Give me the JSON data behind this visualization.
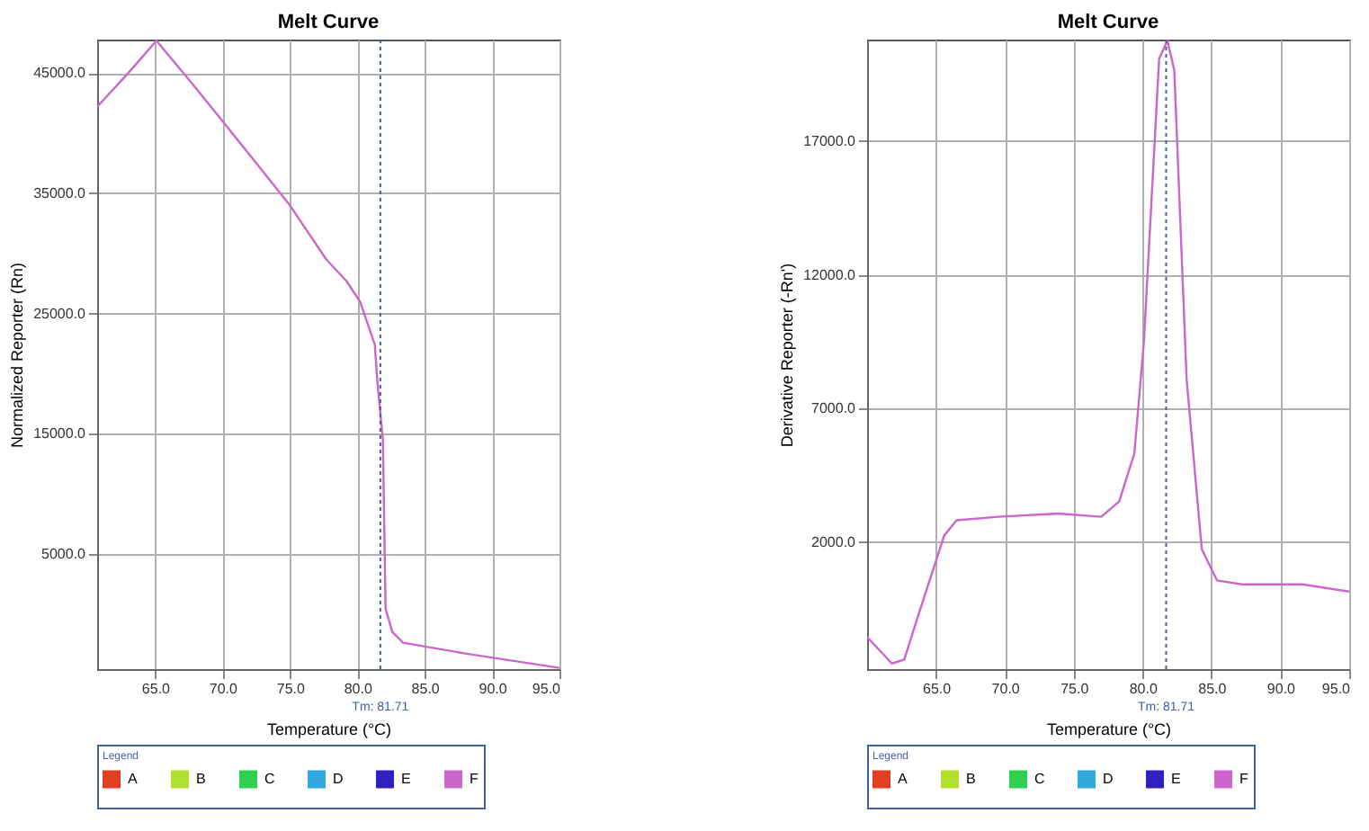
{
  "chart_data": [
    {
      "type": "line",
      "title": "Melt Curve",
      "xlabel": "Temperature (°C)",
      "ylabel": "Normalized Reporter (Rn)",
      "legend_title": "Legend",
      "legend": "bottom",
      "grid": true,
      "line_style": "solid",
      "xlim": [
        60.7,
        95
      ],
      "ylim": [
        -4600,
        47800
      ],
      "xticks": [
        {
          "value": 65,
          "label": "65.0"
        },
        {
          "value": 70,
          "label": "70.0"
        },
        {
          "value": 75,
          "label": "75.0"
        },
        {
          "value": 80,
          "label": "80.0"
        },
        {
          "value": 85,
          "label": "85.0"
        },
        {
          "value": 90,
          "label": "90.0"
        },
        {
          "value": 95,
          "label": "95.0"
        }
      ],
      "yticks": [
        {
          "value": 5000,
          "label": "5000.0"
        },
        {
          "value": 15000,
          "label": "15000.0"
        },
        {
          "value": 25000,
          "label": "25000.0"
        },
        {
          "value": 35000,
          "label": "35000.0"
        },
        {
          "value": 45000,
          "label": "45000.0"
        }
      ],
      "ref_lines": [
        {
          "axis": "x",
          "value": 81.71,
          "label": "Tm: 81.71",
          "color": "#4060a0",
          "line_style": "dotted"
        }
      ],
      "x": [
        60.7,
        63,
        65.1,
        68,
        72.3,
        75,
        77.7,
        79.2,
        80.2,
        81.3,
        81.5,
        81.9,
        82.1,
        82.6,
        83.4,
        88,
        95
      ],
      "series": [
        {
          "name": "A",
          "color": "#e04020",
          "values": [
            null,
            null,
            null,
            null,
            null,
            null,
            null,
            null,
            null,
            null,
            null,
            null,
            null,
            null,
            null,
            null,
            null
          ]
        },
        {
          "name": "B",
          "color": "#b0e030",
          "values": [
            null,
            null,
            null,
            null,
            null,
            null,
            null,
            null,
            null,
            null,
            null,
            null,
            null,
            null,
            null,
            null,
            null
          ]
        },
        {
          "name": "C",
          "color": "#30d050",
          "values": [
            null,
            null,
            null,
            null,
            null,
            null,
            null,
            null,
            null,
            null,
            null,
            null,
            null,
            null,
            null,
            null,
            null
          ]
        },
        {
          "name": "D",
          "color": "#30a8e0",
          "values": [
            null,
            null,
            null,
            null,
            null,
            null,
            null,
            null,
            null,
            null,
            null,
            null,
            null,
            null,
            null,
            null,
            null
          ]
        },
        {
          "name": "E",
          "color": "#3020c0",
          "values": [
            null,
            null,
            null,
            null,
            null,
            null,
            null,
            null,
            null,
            null,
            null,
            null,
            null,
            null,
            null,
            null,
            null
          ]
        },
        {
          "name": "F",
          "color": "#cc66cc",
          "values": [
            42200,
            45000,
            47700,
            43800,
            37800,
            34000,
            29500,
            27700,
            26000,
            22400,
            19200,
            14500,
            400,
            -1500,
            -2400,
            -3300,
            -4500
          ]
        }
      ]
    },
    {
      "type": "line",
      "title": "Melt Curve",
      "xlabel": "Temperature (°C)",
      "ylabel": "Derivative Reporter (-Rn')",
      "legend_title": "Legend",
      "legend": "bottom",
      "grid": true,
      "line_style": "solid",
      "xlim": [
        60,
        95
      ],
      "ylim": [
        -2750,
        20800
      ],
      "xticks": [
        {
          "value": 65,
          "label": "65.0"
        },
        {
          "value": 70,
          "label": "70.0"
        },
        {
          "value": 75,
          "label": "75.0"
        },
        {
          "value": 80,
          "label": "80.0"
        },
        {
          "value": 85,
          "label": "85.0"
        },
        {
          "value": 90,
          "label": "90.0"
        },
        {
          "value": 95,
          "label": "95.0"
        }
      ],
      "yticks": [
        {
          "value": 2000,
          "label": "2000.0"
        },
        {
          "value": 7000,
          "label": "7000.0"
        },
        {
          "value": 12000,
          "label": "12000.0"
        },
        {
          "value": 17000,
          "label": "17000.0"
        }
      ],
      "ref_lines": [
        {
          "axis": "x",
          "value": 81.71,
          "label": "Tm: 81.71",
          "color": "#4060a0",
          "line_style": "dotted"
        }
      ],
      "x": [
        60,
        61.8,
        62.7,
        63.8,
        65.6,
        66.5,
        69.5,
        73.9,
        77,
        78.3,
        79.4,
        80.1,
        81.2,
        81.8,
        82.3,
        83.2,
        84.3,
        85.4,
        87.2,
        91.6,
        95
      ],
      "series": [
        {
          "name": "A",
          "color": "#e04020",
          "values": [
            null,
            null,
            null,
            null,
            null,
            null,
            null,
            null,
            null,
            null,
            null,
            null,
            null,
            null,
            null,
            null,
            null,
            null,
            null,
            null,
            null
          ]
        },
        {
          "name": "B",
          "color": "#b0e030",
          "values": [
            null,
            null,
            null,
            null,
            null,
            null,
            null,
            null,
            null,
            null,
            null,
            null,
            null,
            null,
            null,
            null,
            null,
            null,
            null,
            null,
            null
          ]
        },
        {
          "name": "C",
          "color": "#30d050",
          "values": [
            null,
            null,
            null,
            null,
            null,
            null,
            null,
            null,
            null,
            null,
            null,
            null,
            null,
            null,
            null,
            null,
            null,
            null,
            null,
            null,
            null
          ]
        },
        {
          "name": "D",
          "color": "#30a8e0",
          "values": [
            null,
            null,
            null,
            null,
            null,
            null,
            null,
            null,
            null,
            null,
            null,
            null,
            null,
            null,
            null,
            null,
            null,
            null,
            null,
            null,
            null
          ]
        },
        {
          "name": "E",
          "color": "#3020c0",
          "values": [
            null,
            null,
            null,
            null,
            null,
            null,
            null,
            null,
            null,
            null,
            null,
            null,
            null,
            null,
            null,
            null,
            null,
            null,
            null,
            null,
            null
          ]
        },
        {
          "name": "F",
          "color": "#cc66cc",
          "values": [
            -1550,
            -2540,
            -2390,
            -600,
            2250,
            2820,
            2950,
            3070,
            2950,
            3520,
            5310,
            9530,
            20080,
            20760,
            19660,
            8060,
            1730,
            570,
            420,
            420,
            150
          ]
        }
      ]
    }
  ]
}
